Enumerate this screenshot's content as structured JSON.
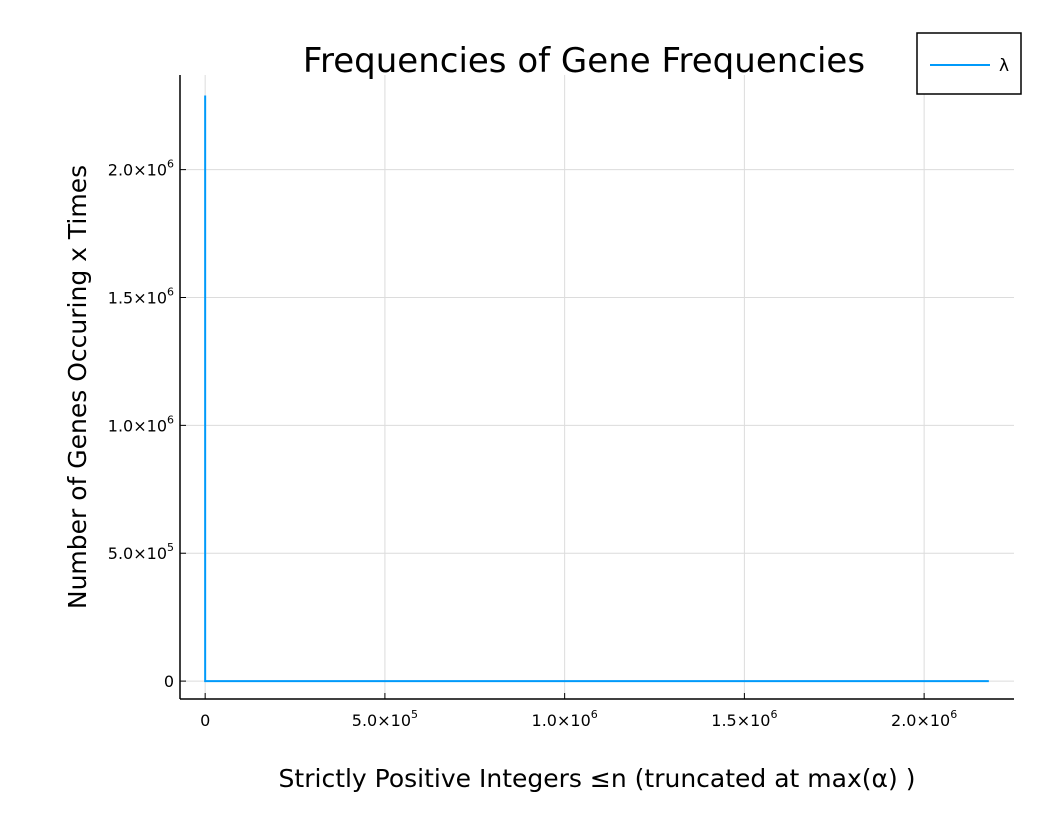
{
  "chart_data": {
    "type": "line",
    "title": "Frequencies of Gene Frequencies",
    "xlabel": "Strictly Positive Integers ≤n (truncated at max(α) )",
    "ylabel": "Number of Genes Occuring x Times",
    "xlim": [
      -70000,
      2250000
    ],
    "ylim": [
      -70000,
      2370000
    ],
    "grid": true,
    "legend": {
      "placement": "top-right"
    },
    "x_ticks": [
      {
        "value": 0,
        "mantissa": "0",
        "exponent": ""
      },
      {
        "value": 500000,
        "mantissa": "5.0×10",
        "exponent": "5"
      },
      {
        "value": 1000000,
        "mantissa": "1.0×10",
        "exponent": "6"
      },
      {
        "value": 1500000,
        "mantissa": "1.5×10",
        "exponent": "6"
      },
      {
        "value": 2000000,
        "mantissa": "2.0×10",
        "exponent": "6"
      }
    ],
    "y_ticks": [
      {
        "value": 0,
        "mantissa": "0",
        "exponent": ""
      },
      {
        "value": 500000,
        "mantissa": "5.0×10",
        "exponent": "5"
      },
      {
        "value": 1000000,
        "mantissa": "1.0×10",
        "exponent": "6"
      },
      {
        "value": 1500000,
        "mantissa": "1.5×10",
        "exponent": "6"
      },
      {
        "value": 2000000,
        "mantissa": "2.0×10",
        "exponent": "6"
      }
    ],
    "series": [
      {
        "name": "λ",
        "color": "#009AFA",
        "x": [
          1,
          2,
          3,
          10,
          100,
          1000,
          10000,
          2180000
        ],
        "y": [
          2290000,
          0,
          0,
          0,
          0,
          0,
          0,
          0
        ]
      }
    ]
  }
}
